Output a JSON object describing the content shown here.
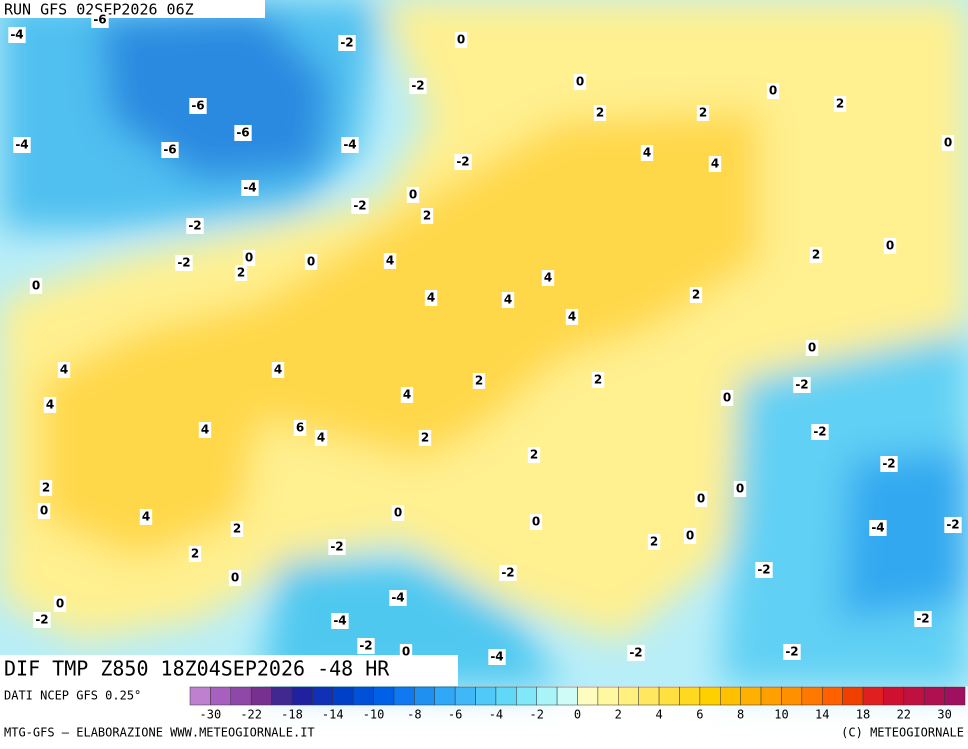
{
  "header": "RUN GFS 02SEP2026 06Z",
  "title": "DIF TMP Z850 18Z04SEP2026 -48 HR",
  "source": "DATI NCEP GFS 0.25°",
  "footer_left": "MTG-GFS — ELABORAZIONE WWW.METEOGIORNALE.IT",
  "footer_right": "(C) METEOGIORNALE",
  "map_labels": [
    -4,
    -6,
    -2,
    0,
    0,
    -2,
    0,
    2,
    -6,
    -6,
    2,
    2,
    -4,
    -6,
    -4,
    0,
    4,
    4,
    -2,
    -4,
    0,
    -2,
    2,
    -2,
    0,
    -2,
    0,
    0,
    4,
    2,
    2,
    0,
    4,
    4,
    4,
    2,
    4,
    0,
    4,
    4,
    2,
    -2,
    2,
    4,
    4,
    0,
    4,
    6,
    4,
    2,
    -2,
    2,
    -2,
    2,
    0,
    0,
    0,
    0,
    4,
    0,
    -4,
    -2,
    2,
    -2,
    2,
    0,
    2,
    -2,
    -2,
    0,
    -4,
    0,
    -2,
    -4,
    -2,
    -2,
    0,
    -2,
    -2,
    -4
  ],
  "colorbar": {
    "colors": [
      "#c080d0",
      "#a860c0",
      "#9048a8",
      "#783090",
      "#402890",
      "#2020a0",
      "#1030b8",
      "#0040c8",
      "#0050d8",
      "#0060e8",
      "#1078f0",
      "#2090f0",
      "#30a8f8",
      "#40b8f8",
      "#50c8f8",
      "#60d8f8",
      "#80e8f8",
      "#a8f4f8",
      "#d0fcf8",
      "#fffcc0",
      "#fff8a0",
      "#fff080",
      "#ffe860",
      "#ffe040",
      "#ffd820",
      "#ffd000",
      "#ffc000",
      "#ffb000",
      "#ffa000",
      "#ff9000",
      "#ff7800",
      "#ff6000",
      "#f04000",
      "#e02020",
      "#d01030",
      "#c01040",
      "#b01050",
      "#a01060"
    ],
    "labels": [
      -30,
      -22,
      -18,
      -14,
      -10,
      -8,
      -6,
      -4,
      -2,
      0,
      2,
      4,
      6,
      8,
      10,
      14,
      18,
      22,
      30
    ]
  }
}
